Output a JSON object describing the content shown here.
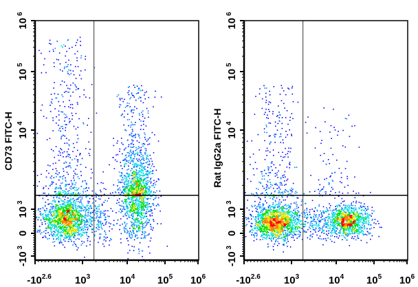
{
  "chart_data": [
    {
      "type": "scatter",
      "subtype": "flow-cytometry-density-dot-plot",
      "xlabel": "",
      "ylabel": "CD73 FITC-H",
      "x_scale": "biexponential",
      "y_scale": "biexponential",
      "xlim": [
        -398,
        1000000
      ],
      "ylim": [
        -1000,
        1000000
      ],
      "x_ticks": [
        {
          "base": "-10",
          "exp": "2.6",
          "value": -398
        },
        {
          "base": "10",
          "exp": "3",
          "value": 1000
        },
        {
          "base": "10",
          "exp": "4",
          "value": 10000
        },
        {
          "base": "10",
          "exp": "5",
          "value": 100000
        },
        {
          "base": "10",
          "exp": "6",
          "value": 1000000
        }
      ],
      "y_ticks": [
        {
          "base": "-10",
          "exp": "3",
          "value": -1000
        },
        {
          "base": "0",
          "exp": "",
          "value": 0
        },
        {
          "base": "10",
          "exp": "3",
          "value": 1000
        },
        {
          "base": "10",
          "exp": "4",
          "value": 10000
        },
        {
          "base": "10",
          "exp": "5",
          "value": 100000
        },
        {
          "base": "10",
          "exp": "6",
          "value": 1000000
        }
      ],
      "quadrant_gate": {
        "x": 1800,
        "y": 1500
      },
      "populations": [
        {
          "name": "negative",
          "x": 500,
          "y": 600,
          "x_sd_decades": 0.27,
          "y_sd_decades": 0.16,
          "events": 1300
        },
        {
          "name": "positive",
          "x": 18000,
          "y": 1400,
          "x_sd_decades": 0.2,
          "y_sd_decades": 0.32,
          "events": 1100
        },
        {
          "name": "bridge",
          "x": 2000,
          "y": 700,
          "x_sd_decades": 0.3,
          "y_sd_decades": 0.2,
          "events": 250
        },
        {
          "name": "negative-upper-tail",
          "x": 500,
          "y_range": [
            1500,
            500000
          ],
          "x_sd_decades": 0.3,
          "events": 450
        },
        {
          "name": "positive-upper-tail",
          "x": 15000,
          "y_range": [
            1500,
            60000
          ],
          "x_sd_decades": 0.22,
          "events": 450
        }
      ]
    },
    {
      "type": "scatter",
      "subtype": "flow-cytometry-density-dot-plot",
      "xlabel": "",
      "ylabel": "Rat IgG2a FITC-H",
      "x_scale": "biexponential",
      "y_scale": "biexponential",
      "xlim": [
        -398,
        1000000
      ],
      "ylim": [
        -1000,
        1000000
      ],
      "x_ticks": [
        {
          "base": "-10",
          "exp": "2.6",
          "value": -398
        },
        {
          "base": "10",
          "exp": "3",
          "value": 1000
        },
        {
          "base": "10",
          "exp": "4",
          "value": 10000
        },
        {
          "base": "10",
          "exp": "5",
          "value": 100000
        },
        {
          "base": "10",
          "exp": "6",
          "value": 1000000
        }
      ],
      "y_ticks": [
        {
          "base": "-10",
          "exp": "3",
          "value": -1000
        },
        {
          "base": "0",
          "exp": "",
          "value": 0
        },
        {
          "base": "10",
          "exp": "3",
          "value": 1000
        },
        {
          "base": "10",
          "exp": "4",
          "value": 10000
        },
        {
          "base": "10",
          "exp": "5",
          "value": 100000
        },
        {
          "base": "10",
          "exp": "6",
          "value": 1000000
        }
      ],
      "quadrant_gate": {
        "x": 1800,
        "y": 1500
      },
      "populations": [
        {
          "name": "negative",
          "x": 500,
          "y": 480,
          "x_sd_decades": 0.28,
          "y_sd_decades": 0.13,
          "events": 1400
        },
        {
          "name": "positive",
          "x": 19000,
          "y": 520,
          "x_sd_decades": 0.28,
          "y_sd_decades": 0.12,
          "events": 1050
        },
        {
          "name": "bridge",
          "x": 2000,
          "y": 500,
          "x_sd_decades": 0.3,
          "y_sd_decades": 0.14,
          "events": 220
        },
        {
          "name": "negative-upper-tail",
          "x": 500,
          "y_range": [
            1500,
            60000
          ],
          "x_sd_decades": 0.3,
          "events": 300
        },
        {
          "name": "positive-upper-tail",
          "x": 8000,
          "y_range": [
            1500,
            30000
          ],
          "x_sd_decades": 0.35,
          "events": 90
        }
      ]
    }
  ],
  "colors": {
    "density_ramp": [
      "#0000ff",
      "#0080ff",
      "#00e0e0",
      "#00e000",
      "#e0e000",
      "#ff8000",
      "#ff0000"
    ],
    "axis": "#000000",
    "gate_vertical": "#555555",
    "gate_horizontal": "#000000"
  }
}
